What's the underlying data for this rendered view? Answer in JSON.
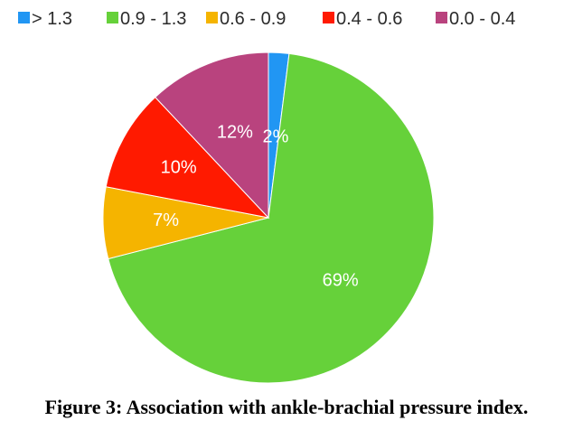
{
  "chart_data": {
    "type": "pie",
    "title": "",
    "categories": [
      "> 1.3",
      "0.9 - 1.3",
      "0.6 - 0.9",
      "0.4 - 0.6",
      "0.0 - 0.4"
    ],
    "values": [
      2,
      69,
      7,
      10,
      12
    ],
    "data_labels": [
      "2%",
      "69%",
      "7%",
      "10%",
      "12%"
    ],
    "colors": [
      "#2196f3",
      "#66d13a",
      "#f5b400",
      "#ff1a00",
      "#b9437e"
    ],
    "start_angle_deg": 0,
    "direction": "clockwise",
    "legend_position": "top"
  },
  "caption": "Figure 3: Association with ankle-brachial pressure index."
}
